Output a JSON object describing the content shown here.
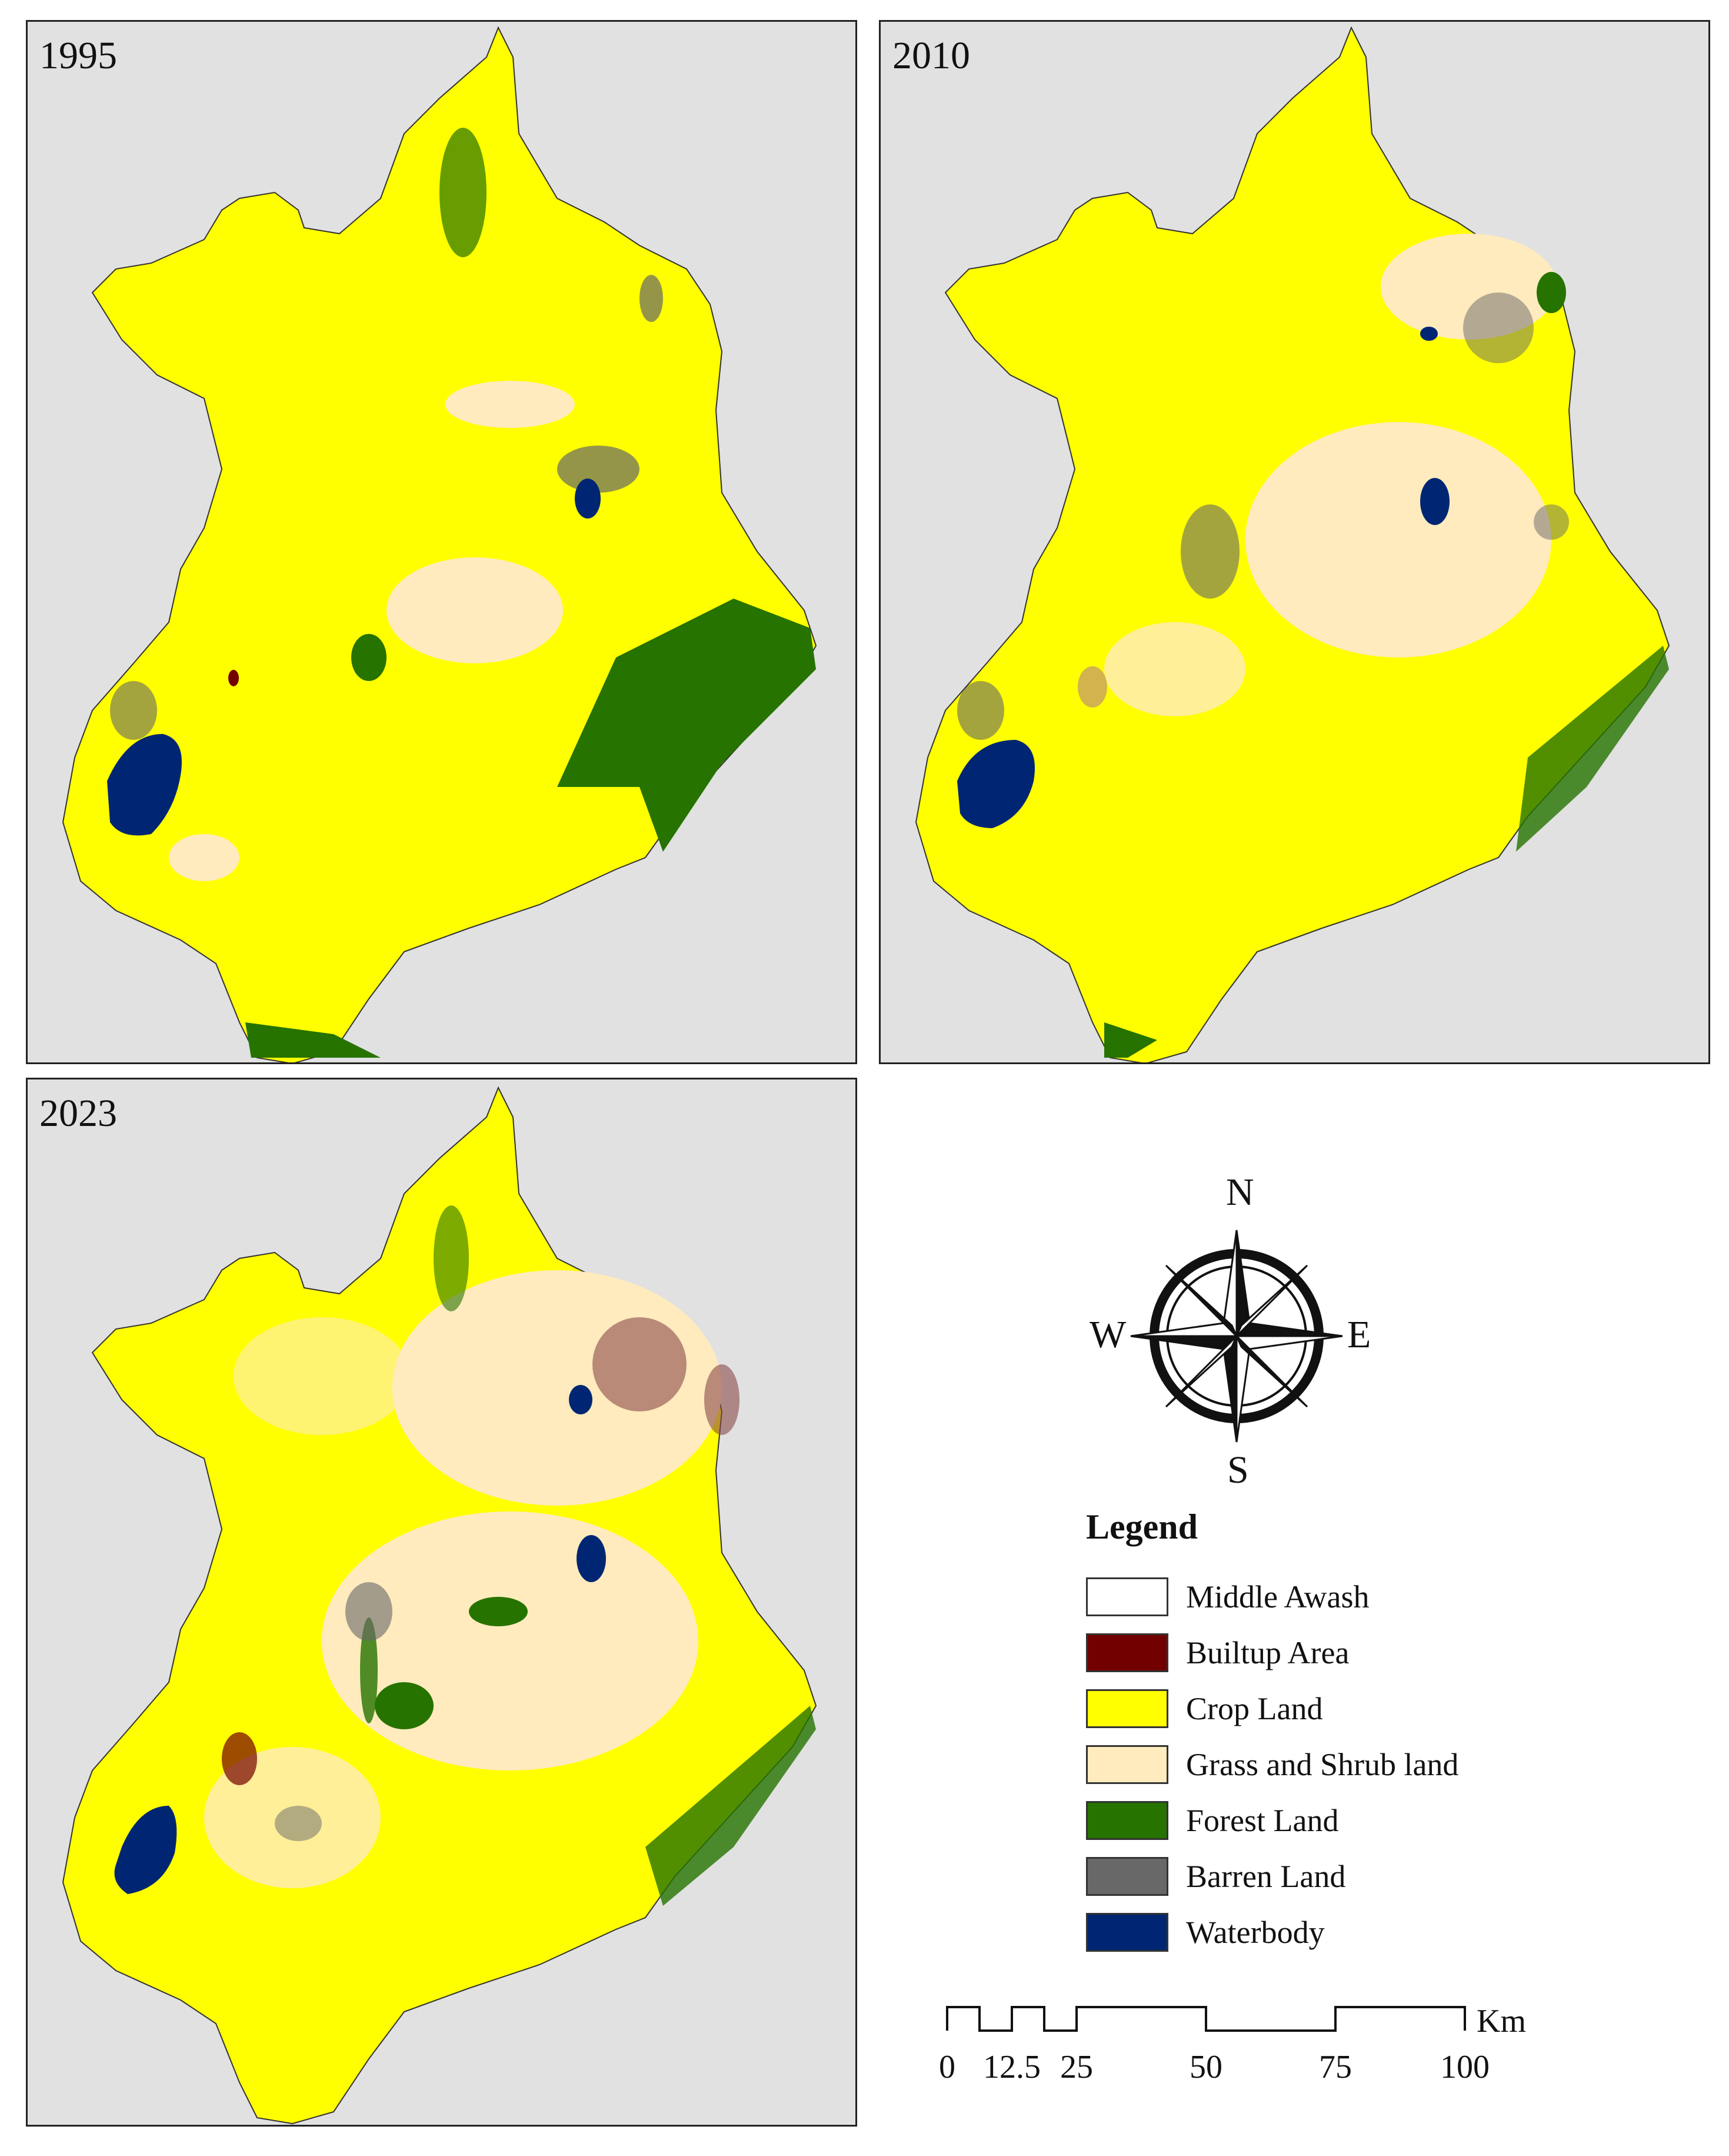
{
  "panels": [
    {
      "year": "1995"
    },
    {
      "year": "2010"
    },
    {
      "year": "2023"
    }
  ],
  "compass": {
    "north": "N",
    "south": "S",
    "east": "E",
    "west": "W"
  },
  "legend": {
    "title": "Legend",
    "items": [
      {
        "label": "Middle Awash",
        "color": "#ffffff"
      },
      {
        "label": "Builtup Area",
        "color": "#730000"
      },
      {
        "label": "Crop Land",
        "color": "#ffff00"
      },
      {
        "label": "Grass and Shrub land",
        "color": "#ffebbe"
      },
      {
        "label": "Forest Land",
        "color": "#267300"
      },
      {
        "label": "Barren Land",
        "color": "#686868"
      },
      {
        "label": "Waterbody",
        "color": "#002673"
      }
    ]
  },
  "scale": {
    "ticks": [
      "0",
      "12.5",
      "25",
      "50",
      "75",
      "100"
    ],
    "unit": "Km"
  }
}
